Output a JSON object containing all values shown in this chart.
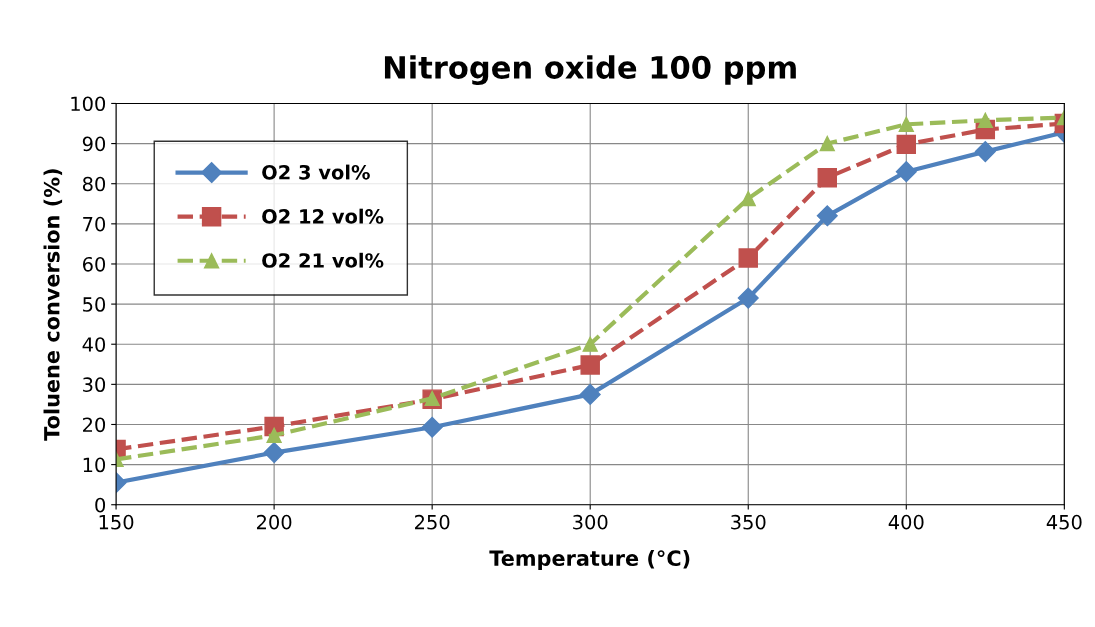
{
  "chart_data": {
    "type": "line",
    "title": "Nitrogen oxide 100 ppm",
    "xlabel": "Temperature (°C)",
    "ylabel": "Toluene conversion (%)",
    "x": [
      150,
      200,
      250,
      300,
      350,
      375,
      400,
      425,
      450
    ],
    "series": [
      {
        "name": "O2 3 vol%",
        "color": "#4f81bd",
        "marker": "diamond",
        "line_style": "solid",
        "values": [
          5.5,
          13,
          19.3,
          27.5,
          51.5,
          72,
          83,
          88,
          92.8
        ]
      },
      {
        "name": "O2 12 vol%",
        "color": "#c0504d",
        "marker": "square",
        "line_style": "dashed",
        "values": [
          13.8,
          19.5,
          26.3,
          34.8,
          61.5,
          81.5,
          89.8,
          93.5,
          95
        ]
      },
      {
        "name": "O2 21 vol%",
        "color": "#9bbb59",
        "marker": "triangle",
        "line_style": "dashed",
        "values": [
          11.3,
          17.3,
          26.5,
          40,
          76.3,
          90,
          94.8,
          95.8,
          96.5
        ]
      }
    ],
    "xlim": [
      150,
      450
    ],
    "xticks": [
      150,
      200,
      250,
      300,
      350,
      400,
      450
    ],
    "ylim": [
      0,
      100
    ],
    "yticks": [
      0,
      10,
      20,
      30,
      40,
      50,
      60,
      70,
      80,
      90,
      100
    ],
    "grid": true,
    "legend": "top left"
  }
}
